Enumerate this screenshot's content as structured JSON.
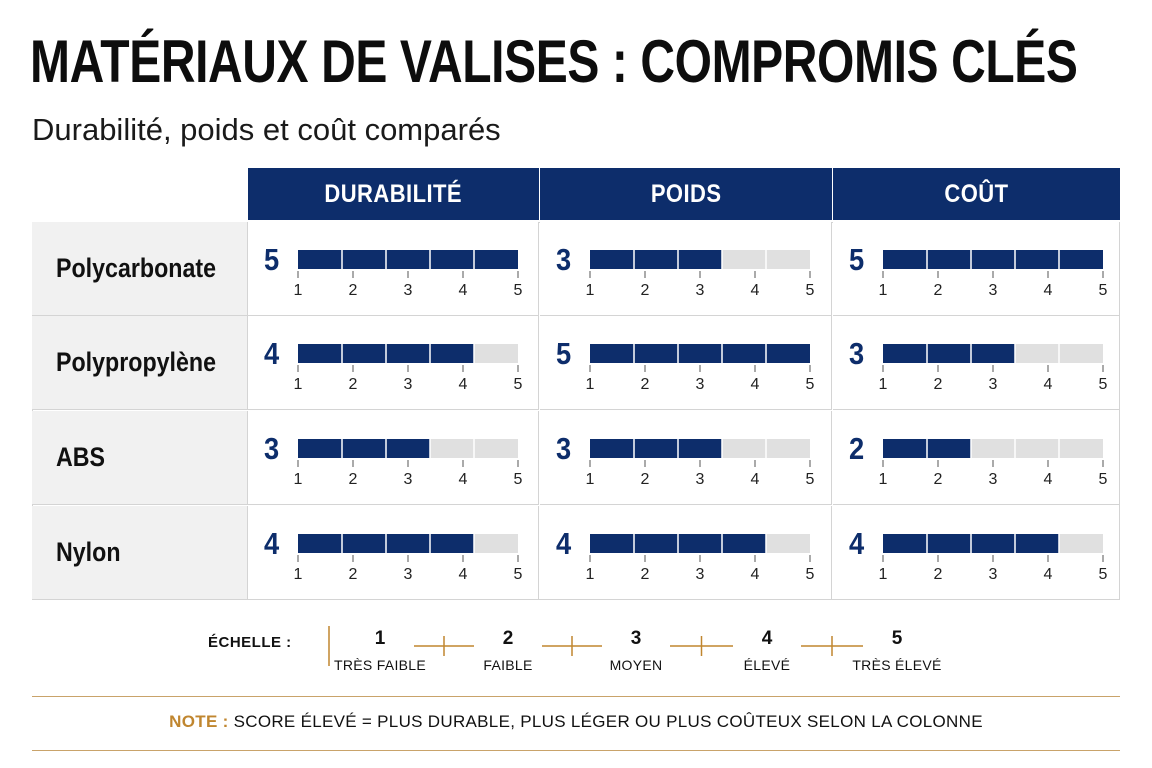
{
  "title": "MATÉRIAUX DE VALISES : COMPROMIS CLÉS",
  "subtitle": "Durabilité, poids et coût comparés",
  "colors": {
    "bar": "#0d2d6b",
    "bar_empty": "#e0e0e0",
    "header_bg": "#0d2d6b",
    "accent": "#c0862f",
    "rule": "#c9a36a"
  },
  "chart_data": {
    "type": "bar",
    "orientation": "horizontal",
    "layout": "matrix",
    "columns": [
      "DURABILITÉ",
      "POIDS",
      "COÛT"
    ],
    "rows": [
      "Polycarbonate",
      "Polypropylène",
      "ABS",
      "Nylon"
    ],
    "axis_ticks": [
      "1",
      "2",
      "3",
      "4",
      "5"
    ],
    "xlim": [
      0,
      5
    ],
    "cells": [
      [
        {
          "label": "5",
          "value": 5.0
        },
        {
          "label": "3",
          "value": 3.0
        },
        {
          "label": "5",
          "value": 5.0
        }
      ],
      [
        {
          "label": "4",
          "value": 4.0
        },
        {
          "label": "5",
          "value": 5.0
        },
        {
          "label": "3",
          "value": 3.0
        }
      ],
      [
        {
          "label": "3",
          "value": 3.0
        },
        {
          "label": "3",
          "value": 3.0
        },
        {
          "label": "2",
          "value": 2.0
        }
      ],
      [
        {
          "label": "4",
          "value": 4.0
        },
        {
          "label": "4",
          "value": 4.0
        },
        {
          "label": "4",
          "value": 4.0
        }
      ]
    ]
  },
  "scale": {
    "title": "ÉCHELLE :",
    "levels": [
      {
        "num": "1",
        "label": "TRÈS FAIBLE"
      },
      {
        "num": "2",
        "label": "FAIBLE"
      },
      {
        "num": "3",
        "label": "MOYEN"
      },
      {
        "num": "4",
        "label": "ÉLEVÉ"
      },
      {
        "num": "5",
        "label": "TRÈS ÉLEVÉ"
      }
    ]
  },
  "note": {
    "key": "NOTE :",
    "text": "SCORE ÉLEVÉ = PLUS DURABLE, PLUS LÉGER OU PLUS COÛTEUX SELON LA COLONNE"
  }
}
